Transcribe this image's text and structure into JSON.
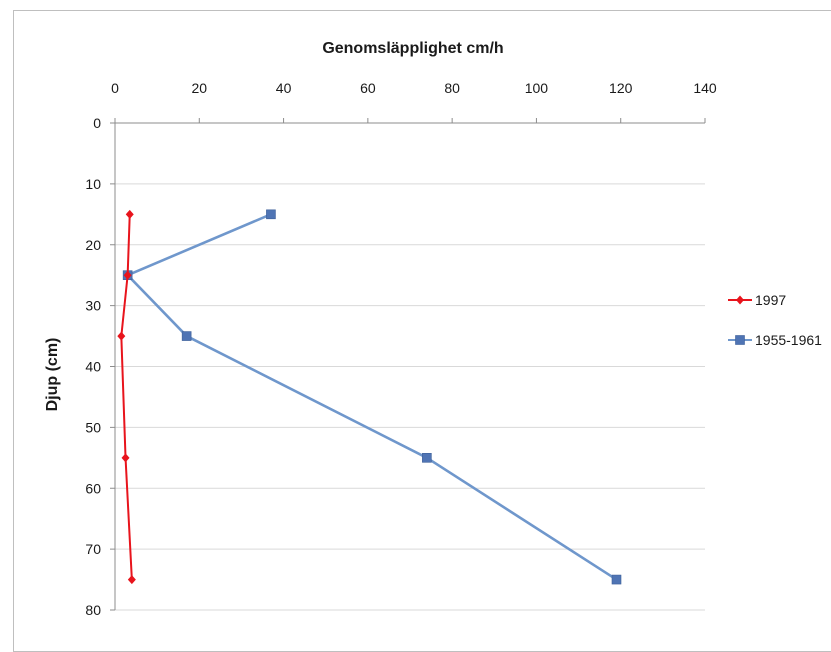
{
  "chart_data": {
    "type": "line",
    "title": "",
    "xlabel": "Genomsläpplighet cm/h",
    "ylabel": "Djup (cm)",
    "xlim": [
      0,
      140
    ],
    "ylim": [
      0,
      80
    ],
    "x_ticks": [
      "0",
      "20",
      "40",
      "60",
      "80",
      "100",
      "120",
      "140"
    ],
    "y_ticks": [
      "0",
      "10",
      "20",
      "30",
      "40",
      "50",
      "60",
      "70",
      "80"
    ],
    "x_axis_position": "top",
    "y_axis_inverted": true,
    "grid": "horizontal",
    "legend_position": "right",
    "series": [
      {
        "name": "1997",
        "color": "#e8141c",
        "marker": "diamond",
        "points": [
          {
            "x": 3.5,
            "y": 15
          },
          {
            "x": 3,
            "y": 25
          },
          {
            "x": 1.5,
            "y": 35
          },
          {
            "x": 2.5,
            "y": 55
          },
          {
            "x": 4,
            "y": 75
          }
        ]
      },
      {
        "name": "1955-1961",
        "color": "#6f97cc",
        "marker": "square",
        "marker_color": "#4f74b4",
        "points": [
          {
            "x": 37,
            "y": 15
          },
          {
            "x": 3,
            "y": 25
          },
          {
            "x": 17,
            "y": 35
          },
          {
            "x": 74,
            "y": 55
          },
          {
            "x": 119,
            "y": 75
          }
        ]
      }
    ]
  }
}
